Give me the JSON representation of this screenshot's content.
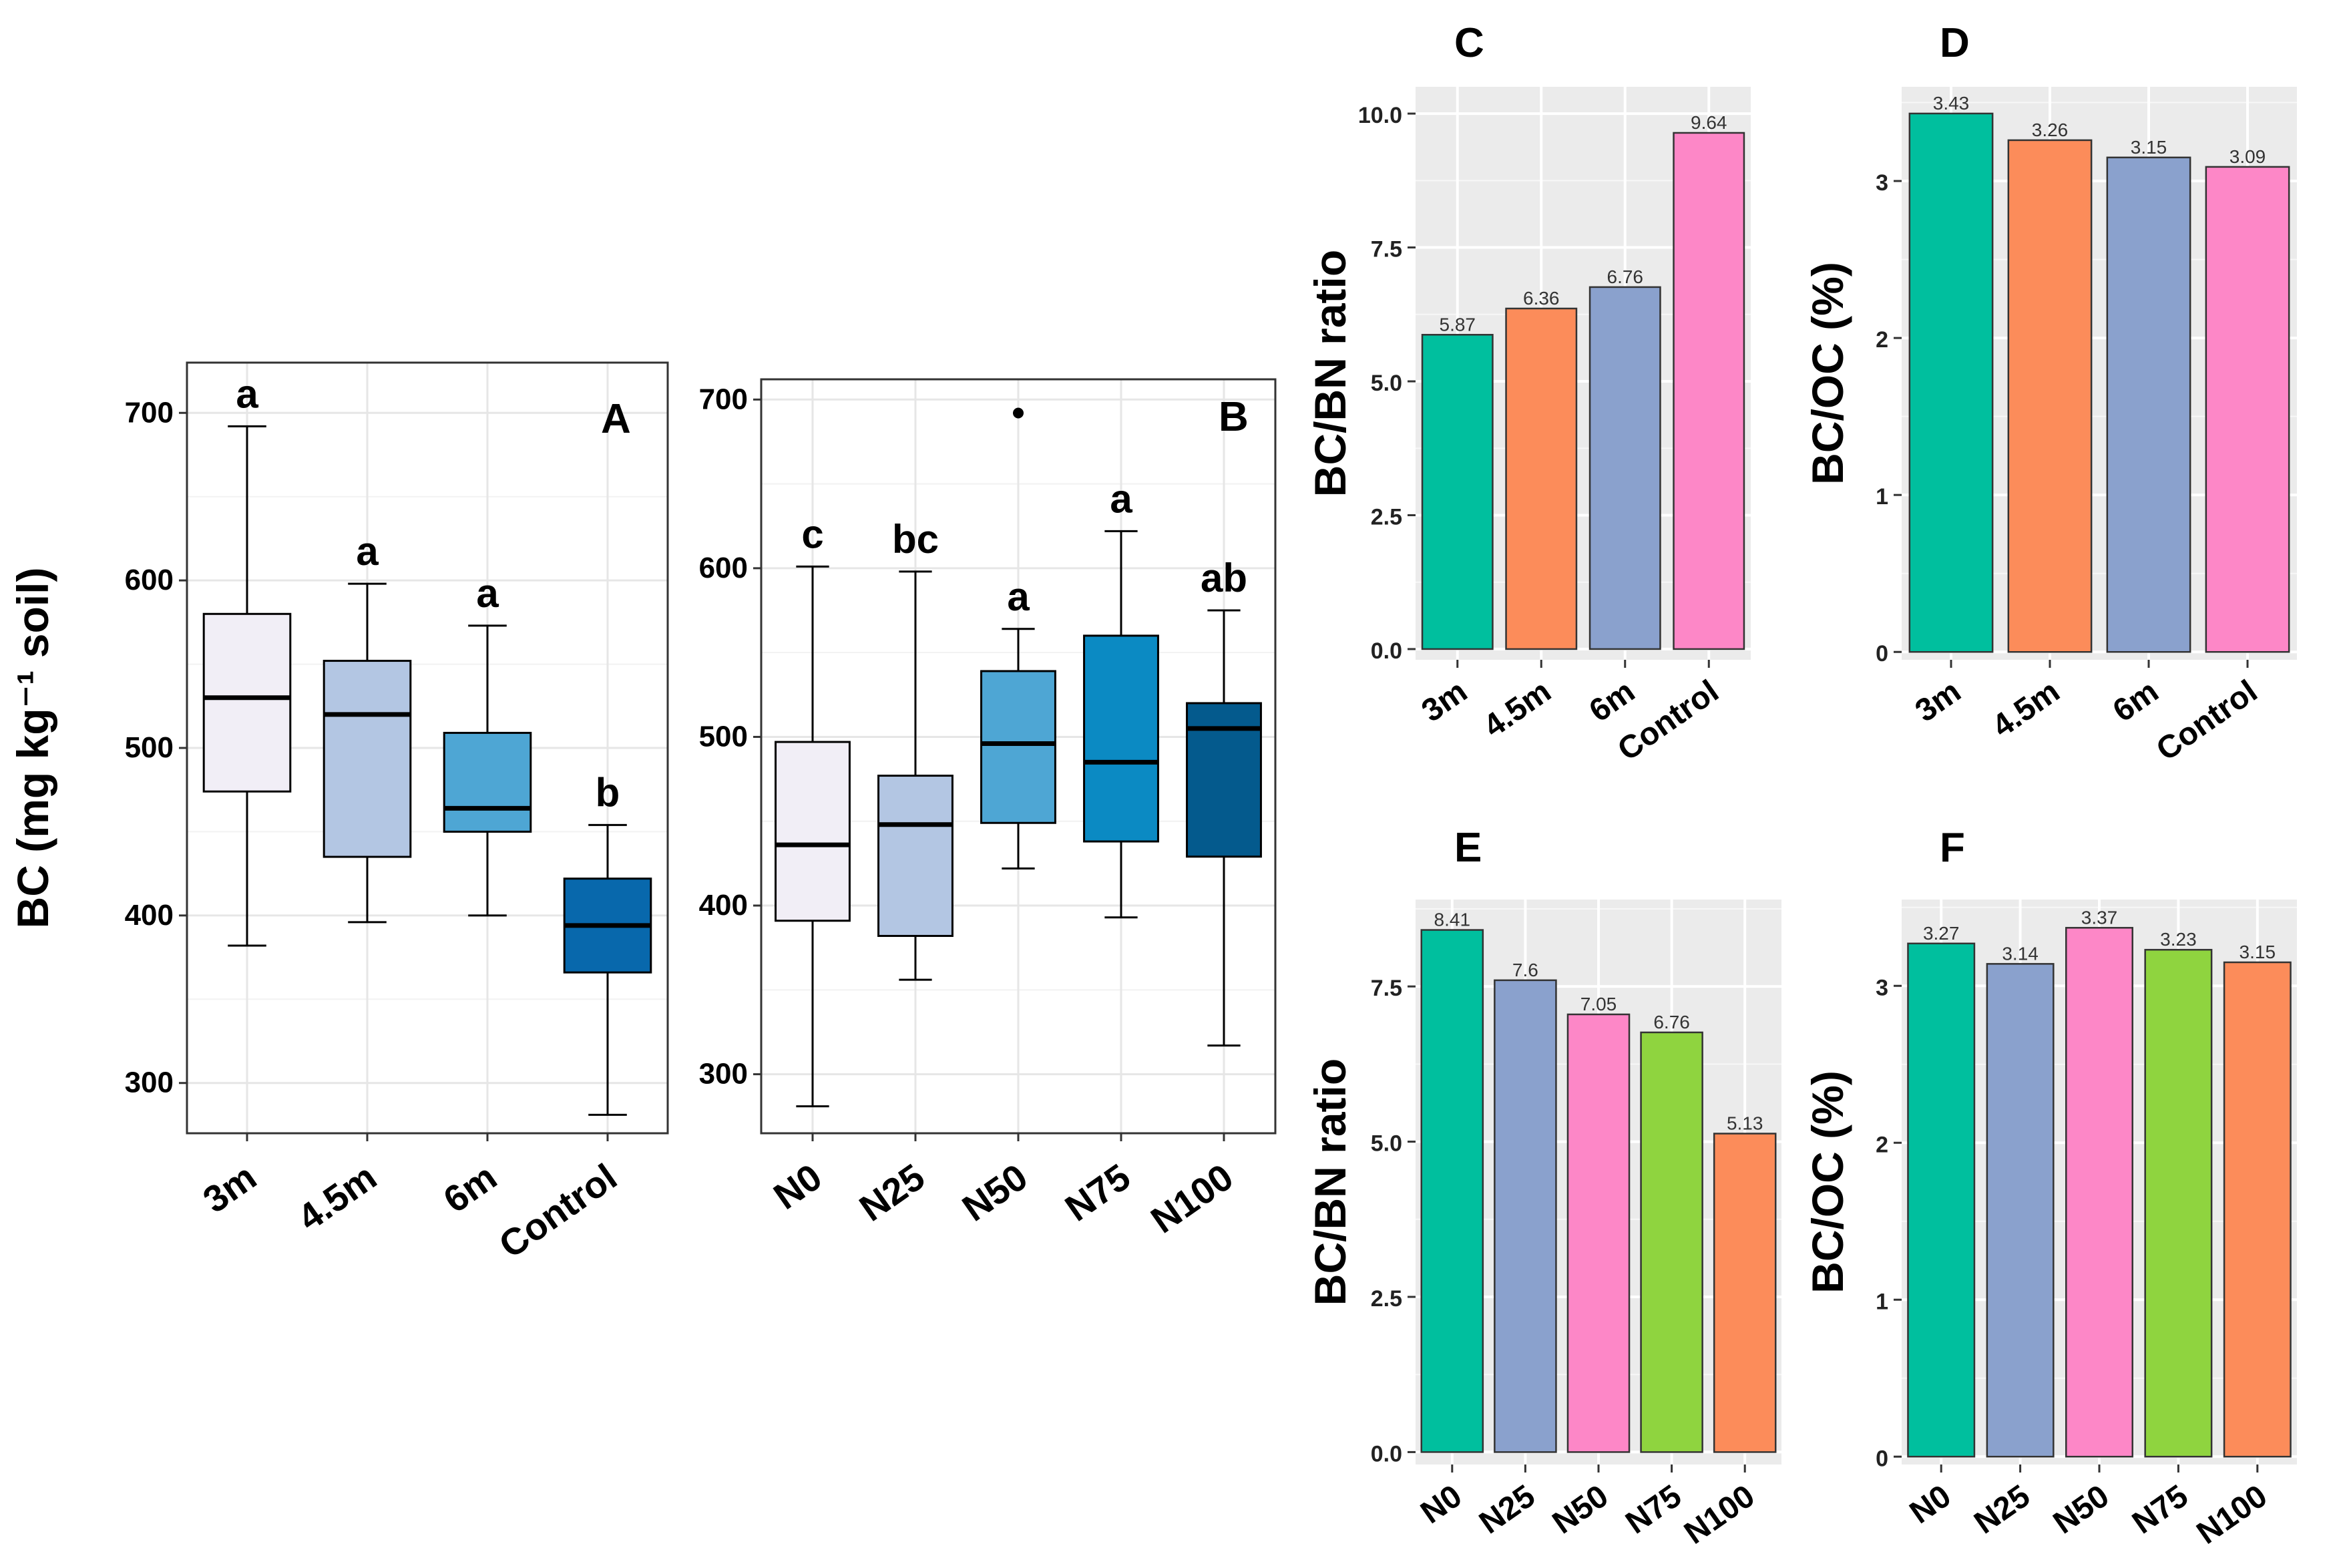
{
  "figure": {
    "background": "#ffffff",
    "panel_bg": "#ebebeb",
    "grid": "#ffffff",
    "box_grid": "#ebebeb"
  },
  "chart_data": [
    {
      "id": "A",
      "type": "box",
      "panel_label": "A",
      "ylabel": "BC (mg kg⁻¹ soil)",
      "ylim": [
        270,
        730
      ],
      "yticks": [
        300,
        400,
        500,
        600,
        700
      ],
      "yticklabels": [
        "300",
        "400",
        "500",
        "600",
        "700"
      ],
      "categories": [
        "3m",
        "4.5m",
        "6m",
        "Control"
      ],
      "colors": [
        "#f1eef6",
        "#b3c6e3",
        "#4ea6d4",
        "#0868ac"
      ],
      "boxes": [
        {
          "min": 382,
          "q1": 474,
          "median": 530,
          "q3": 580,
          "max": 692,
          "outliers": []
        },
        {
          "min": 396,
          "q1": 435,
          "median": 520,
          "q3": 552,
          "max": 598,
          "outliers": []
        },
        {
          "min": 400,
          "q1": 450,
          "median": 464,
          "q3": 509,
          "max": 573,
          "outliers": []
        },
        {
          "min": 281,
          "q1": 366,
          "median": 394,
          "q3": 422,
          "max": 454,
          "outliers": []
        }
      ],
      "letters": [
        "a",
        "a",
        "a",
        "b"
      ]
    },
    {
      "id": "B",
      "type": "box",
      "panel_label": "B",
      "ylim": [
        265,
        712
      ],
      "yticks": [
        300,
        400,
        500,
        600,
        700
      ],
      "yticklabels": [
        "300",
        "400",
        "500",
        "600",
        "700"
      ],
      "categories": [
        "N0",
        "N25",
        "N50",
        "N75",
        "N100"
      ],
      "colors": [
        "#f1eef6",
        "#b3c6e3",
        "#4ea6d4",
        "#0b8ac3",
        "#045a8d"
      ],
      "boxes": [
        {
          "min": 281,
          "q1": 391,
          "median": 436,
          "q3": 497,
          "max": 601,
          "outliers": []
        },
        {
          "min": 356,
          "q1": 382,
          "median": 448,
          "q3": 477,
          "max": 598,
          "outliers": []
        },
        {
          "min": 422,
          "q1": 449,
          "median": 496,
          "q3": 539,
          "max": 564,
          "outliers": [
            692
          ]
        },
        {
          "min": 393,
          "q1": 438,
          "median": 485,
          "q3": 560,
          "max": 622,
          "outliers": []
        },
        {
          "min": 317,
          "q1": 429,
          "median": 505,
          "q3": 520,
          "max": 575,
          "outliers": []
        }
      ],
      "letters": [
        "c",
        "bc",
        "a",
        "a",
        "ab"
      ]
    },
    {
      "id": "C",
      "type": "bar",
      "panel_label": "C",
      "ylabel": "BC/BN ratio",
      "ylim": [
        -0.2,
        10.5
      ],
      "yticks": [
        0,
        2.5,
        5,
        7.5,
        10
      ],
      "yticklabels": [
        "0.0",
        "2.5",
        "5.0",
        "7.5",
        "10.0"
      ],
      "categories": [
        "3m",
        "4.5m",
        "6m",
        "Control"
      ],
      "values": [
        5.87,
        6.36,
        6.76,
        9.64
      ],
      "value_labels": [
        "5.87",
        "6.36",
        "6.76",
        "9.64"
      ],
      "colors": [
        "#00bf9e",
        "#fc8c5a",
        "#8aa1cd",
        "#fd87c7"
      ]
    },
    {
      "id": "D",
      "type": "bar",
      "panel_label": "D",
      "ylabel": "BC/OC (%)",
      "ylim": [
        -0.05,
        3.6
      ],
      "yticks": [
        0,
        1,
        2,
        3
      ],
      "yticklabels": [
        "0",
        "1",
        "2",
        "3"
      ],
      "categories": [
        "3m",
        "4.5m",
        "6m",
        "Control"
      ],
      "values": [
        3.43,
        3.26,
        3.15,
        3.09
      ],
      "value_labels": [
        "3.43",
        "3.26",
        "3.15",
        "3.09"
      ],
      "colors": [
        "#00bf9e",
        "#fc8c5a",
        "#8aa1cd",
        "#fd87c7"
      ]
    },
    {
      "id": "E",
      "type": "bar",
      "panel_label": "E",
      "ylabel": "BC/BN ratio",
      "ylim": [
        -0.2,
        8.9
      ],
      "yticks": [
        0,
        2.5,
        5,
        7.5
      ],
      "yticklabels": [
        "0.0",
        "2.5",
        "5.0",
        "7.5"
      ],
      "categories": [
        "N0",
        "N25",
        "N50",
        "N75",
        "N100"
      ],
      "values": [
        8.41,
        7.6,
        7.05,
        6.76,
        5.13
      ],
      "value_labels": [
        "8.41",
        "7.6",
        "7.05",
        "6.76",
        "5.13"
      ],
      "colors": [
        "#00bf9e",
        "#8aa1cd",
        "#fd87c7",
        "#8fd43f",
        "#fc8c5a"
      ]
    },
    {
      "id": "F",
      "type": "bar",
      "panel_label": "F",
      "ylabel": "BC/OC (%)",
      "ylim": [
        -0.05,
        3.55
      ],
      "yticks": [
        0,
        1,
        2,
        3
      ],
      "yticklabels": [
        "0",
        "1",
        "2",
        "3"
      ],
      "categories": [
        "N0",
        "N25",
        "N50",
        "N75",
        "N100"
      ],
      "values": [
        3.27,
        3.14,
        3.37,
        3.23,
        3.15
      ],
      "value_labels": [
        "3.27",
        "3.14",
        "3.37",
        "3.23",
        "3.15"
      ],
      "colors": [
        "#00bf9e",
        "#8aa1cd",
        "#fd87c7",
        "#8fd43f",
        "#fc8c5a"
      ]
    }
  ]
}
